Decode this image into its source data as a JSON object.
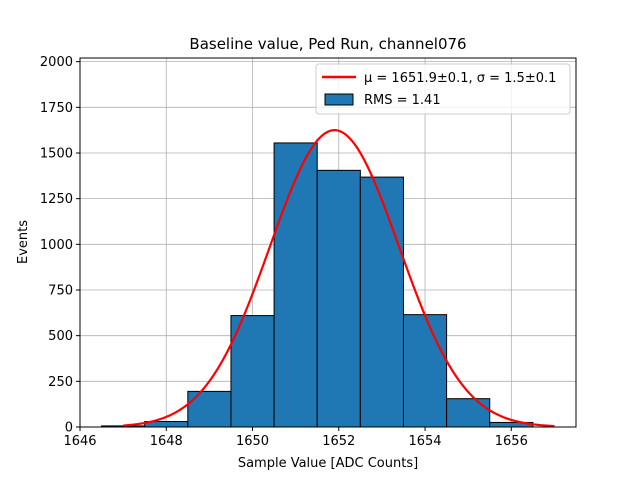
{
  "chart_data": {
    "type": "bar",
    "title": "Baseline value, Ped Run, channel076",
    "xlabel": "Sample Value [ADC Counts]",
    "ylabel": "Events",
    "xlim": [
      1646,
      1657.5
    ],
    "ylim": [
      0,
      2020
    ],
    "xticks": [
      1646,
      1648,
      1650,
      1652,
      1654,
      1656
    ],
    "yticks": [
      0,
      250,
      500,
      750,
      1000,
      1250,
      1500,
      1750,
      2000
    ],
    "grid": true,
    "legend_position": "top-right",
    "histogram": {
      "name": "RMS = 1.41",
      "color": "#1f77b4",
      "edgecolor": "#000000",
      "bins": [
        {
          "x0": 1646.5,
          "x1": 1647.5,
          "value": 6
        },
        {
          "x0": 1647.5,
          "x1": 1648.5,
          "value": 30
        },
        {
          "x0": 1648.5,
          "x1": 1649.5,
          "value": 195
        },
        {
          "x0": 1649.5,
          "x1": 1650.5,
          "value": 610
        },
        {
          "x0": 1650.5,
          "x1": 1651.5,
          "value": 1555
        },
        {
          "x0": 1651.5,
          "x1": 1652.5,
          "value": 1405
        },
        {
          "x0": 1652.5,
          "x1": 1653.5,
          "value": 1368
        },
        {
          "x0": 1653.5,
          "x1": 1654.5,
          "value": 615
        },
        {
          "x0": 1654.5,
          "x1": 1655.5,
          "value": 155
        },
        {
          "x0": 1655.5,
          "x1": 1656.5,
          "value": 25
        }
      ]
    },
    "fit": {
      "name_mu": "μ = 1651.9±0.1",
      "name_sep": ", ",
      "name_sigma": "σ = 1.5±0.1",
      "color": "#ff0000",
      "amplitude": 1625,
      "mu": 1651.9,
      "sigma": 1.5,
      "x_range": [
        1647.0,
        1657.0
      ]
    }
  }
}
